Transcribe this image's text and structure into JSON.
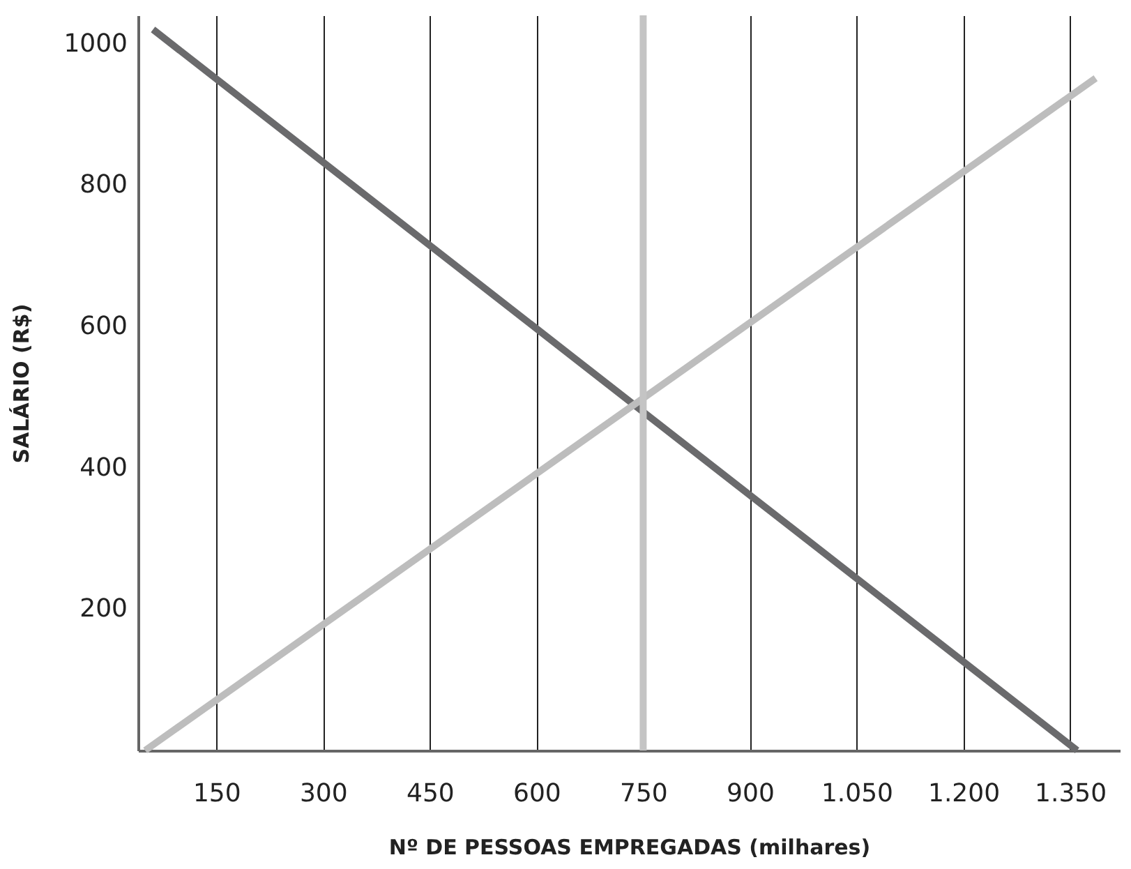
{
  "chart_data": {
    "type": "line",
    "xlabel": "Nº DE PESSOAS EMPREGADAS (milhares)",
    "ylabel": "SALÁRIO (R$)",
    "xlim": [
      40,
      1420
    ],
    "ylim": [
      0,
      1040
    ],
    "xticks": [
      150,
      300,
      450,
      600,
      750,
      900,
      {
        "value": 1050,
        "label": "1.050"
      },
      {
        "value": 1200,
        "label": "1.200"
      },
      {
        "value": 1350,
        "label": "1.350"
      }
    ],
    "yticks": [
      200,
      400,
      600,
      800,
      1000
    ],
    "series": [
      {
        "color": "#6a6a6c",
        "x": [
          61,
          1360
        ],
        "values": [
          1020,
          0
        ]
      },
      {
        "color": "#bdbdbd",
        "x": [
          50,
          1386
        ],
        "values": [
          0,
          951
        ]
      }
    ],
    "ref_lines": [
      {
        "axis": "x",
        "value": 750,
        "color": "#c4c4c4"
      }
    ],
    "grid": "x",
    "marker": "none",
    "line_style": "solid"
  }
}
